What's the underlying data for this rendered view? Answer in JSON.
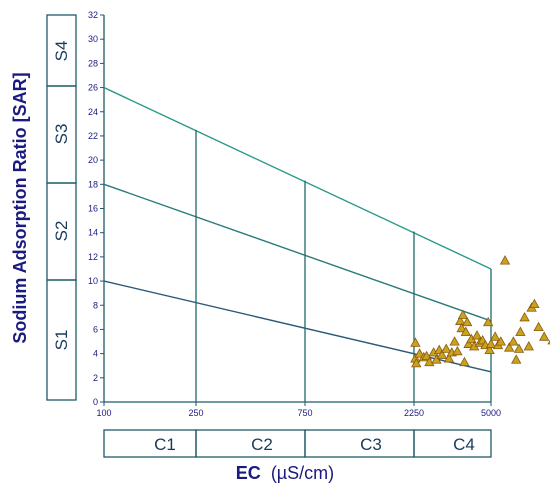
{
  "chart_data": {
    "type": "scatter",
    "title": "",
    "ylabel": "Sodium Adsorption Ratio  [SAR]",
    "xlabel_main": "EC",
    "xlabel_unit": "(µS/cm)",
    "ylim": [
      0,
      32
    ],
    "yticks": [
      "0",
      "2",
      "4",
      "6",
      "8",
      "10",
      "12",
      "14",
      "16",
      "18",
      "20",
      "22",
      "24",
      "26",
      "28",
      "30",
      "32"
    ],
    "xticks": [
      "100",
      "250",
      "750",
      "2250",
      "5000"
    ],
    "grid": false,
    "salinity_classes": [
      "C1",
      "C2",
      "C3",
      "C4"
    ],
    "sodium_classes": [
      "S1",
      "S2",
      "S3",
      "S4"
    ],
    "class_boundaries": [
      {
        "name": "S1/S2",
        "points": [
          [
            100,
            10
          ],
          [
            5000,
            2.5
          ]
        ]
      },
      {
        "name": "S2/S3",
        "points": [
          [
            100,
            18
          ],
          [
            5000,
            6.7
          ]
        ]
      },
      {
        "name": "S3/S4",
        "points": [
          [
            100,
            26
          ],
          [
            5000,
            11
          ]
        ]
      }
    ],
    "ec_divisions": [
      {
        "ec": 250,
        "sar_top": 22.5
      },
      {
        "ec": 750,
        "sar_top": 18.3
      },
      {
        "ec": 2250,
        "sar_top": 14.1
      }
    ],
    "colors": {
      "boundary_S3": "#2a9a8a",
      "boundary_S2": "#2a7a7a",
      "boundary_S1": "#2a5a7a",
      "axes": "#1f5a6a",
      "points_fill": "#c9a21e",
      "points_stroke": "#8a5a10"
    },
    "points": [
      [
        2300,
        4.9
      ],
      [
        2300,
        3.6
      ],
      [
        2330,
        3.2
      ],
      [
        2450,
        4.0
      ],
      [
        2600,
        3.7
      ],
      [
        2700,
        3.8
      ],
      [
        2800,
        3.3
      ],
      [
        2950,
        4.1
      ],
      [
        3050,
        3.5
      ],
      [
        3150,
        4.3
      ],
      [
        3250,
        3.9
      ],
      [
        3400,
        4.4
      ],
      [
        3500,
        3.6
      ],
      [
        3600,
        4.1
      ],
      [
        3700,
        5.0
      ],
      [
        3800,
        4.2
      ],
      [
        3900,
        6.7
      ],
      [
        3950,
        6.1
      ],
      [
        4000,
        7.2
      ],
      [
        4050,
        3.3
      ],
      [
        4100,
        5.8
      ],
      [
        4150,
        6.6
      ],
      [
        4200,
        4.8
      ],
      [
        4300,
        5.2
      ],
      [
        4400,
        4.6
      ],
      [
        4500,
        5.5
      ],
      [
        4600,
        4.9
      ],
      [
        4700,
        5.1
      ],
      [
        4800,
        4.7
      ],
      [
        4900,
        6.6
      ],
      [
        4950,
        4.3
      ],
      [
        5000,
        4.8
      ],
      [
        5150,
        5.4
      ],
      [
        5250,
        4.7
      ],
      [
        5350,
        5.0
      ],
      [
        5500,
        11.7
      ],
      [
        5650,
        4.5
      ],
      [
        5800,
        5.0
      ],
      [
        5900,
        3.5
      ],
      [
        6000,
        4.4
      ],
      [
        6050,
        5.8
      ],
      [
        6200,
        7.0
      ],
      [
        6350,
        4.6
      ],
      [
        6450,
        7.8
      ],
      [
        6550,
        8.1
      ],
      [
        6700,
        6.2
      ],
      [
        6900,
        5.4
      ],
      [
        7200,
        5.1
      ],
      [
        7600,
        5.7
      ],
      [
        8400,
        5.4
      ]
    ]
  }
}
